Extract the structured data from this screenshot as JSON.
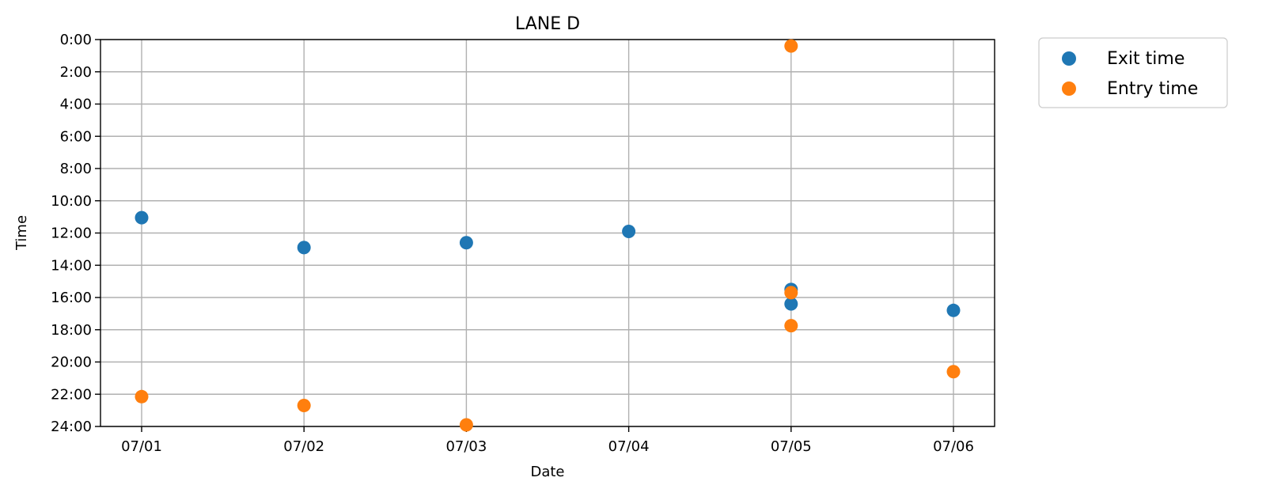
{
  "chart_data": {
    "type": "scatter",
    "title": "LANE D",
    "xlabel": "Date",
    "ylabel": "Time",
    "x_categories": [
      "07/01",
      "07/02",
      "07/03",
      "07/04",
      "07/05",
      "07/06"
    ],
    "y_ticks": [
      "0:00",
      "2:00",
      "4:00",
      "6:00",
      "8:00",
      "10:00",
      "12:00",
      "14:00",
      "16:00",
      "18:00",
      "20:00",
      "22:00",
      "24:00"
    ],
    "y_range_hours": [
      0,
      24
    ],
    "y_inverted": true,
    "grid": true,
    "legend_position": "outside-top-right",
    "series": [
      {
        "name": "Exit time",
        "color": "#1f77b4",
        "points": [
          {
            "x": "07/01",
            "y": 11.05
          },
          {
            "x": "07/02",
            "y": 12.9
          },
          {
            "x": "07/03",
            "y": 12.6
          },
          {
            "x": "07/04",
            "y": 11.9
          },
          {
            "x": "07/05",
            "y": 15.5
          },
          {
            "x": "07/05",
            "y": 16.4
          },
          {
            "x": "07/06",
            "y": 16.8
          }
        ]
      },
      {
        "name": "Entry time",
        "color": "#ff7f0e",
        "points": [
          {
            "x": "07/01",
            "y": 22.15
          },
          {
            "x": "07/02",
            "y": 22.7
          },
          {
            "x": "07/03",
            "y": 23.9
          },
          {
            "x": "07/05",
            "y": 0.4
          },
          {
            "x": "07/05",
            "y": 15.7
          },
          {
            "x": "07/05",
            "y": 17.75
          },
          {
            "x": "07/06",
            "y": 20.6
          }
        ]
      }
    ]
  }
}
